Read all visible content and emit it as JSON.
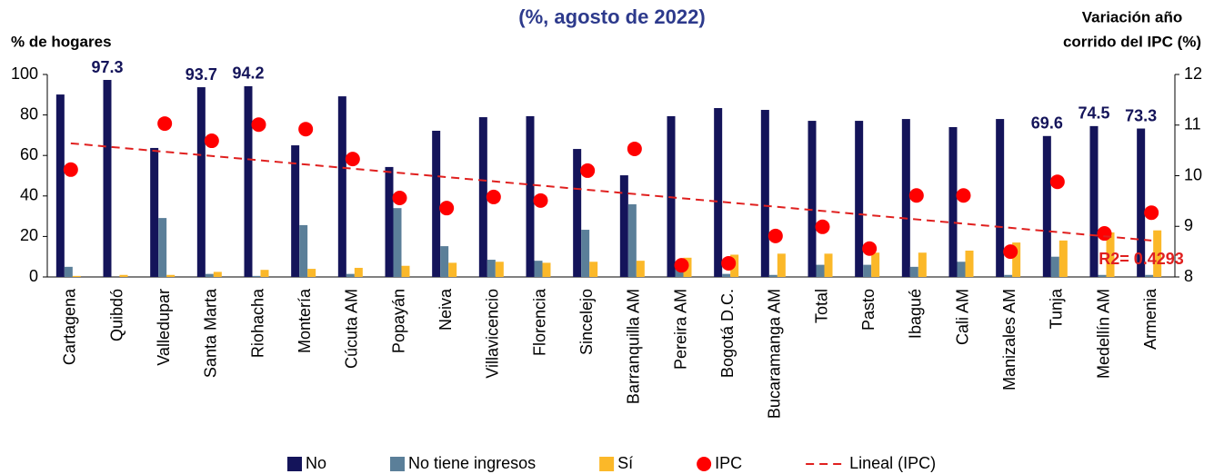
{
  "chart_data": {
    "type": "bar",
    "subtitle": "(%, agosto de 2022)",
    "ylabel": "% de hogares",
    "y2label": [
      "Variación año",
      "corrido del IPC (%)"
    ],
    "categories": [
      "Cartagena",
      "Quibdó",
      "Valledupar",
      "Santa Marta",
      "Riohacha",
      "Montería",
      "Cúcuta AM",
      "Popayán",
      "Neiva",
      "Villavicencio",
      "Florencia",
      "Sincelejo",
      "Barranquilla AM",
      "Pereira AM",
      "Bogotá D.C.",
      "Bucaramanga AM",
      "Total",
      "Pasto",
      "Ibagué",
      "Cali AM",
      "Manizales AM",
      "Tunja",
      "Medellín AM",
      "Armenia"
    ],
    "series": [
      {
        "name": "No",
        "color": "#14145a",
        "values": [
          90.1,
          97.3,
          63.7,
          93.7,
          94.2,
          65,
          89.2,
          54.3,
          72.2,
          78.9,
          79.4,
          63.2,
          50.2,
          79.4,
          83.4,
          82.5,
          77.1,
          77.1,
          78,
          74,
          78,
          69.6,
          74.5,
          73.3
        ],
        "value_labels": [
          null,
          "97.3",
          null,
          "93.7",
          "94.2",
          null,
          null,
          null,
          null,
          null,
          null,
          null,
          null,
          null,
          null,
          null,
          null,
          null,
          null,
          null,
          null,
          "69.6",
          "74.5",
          "73.3"
        ]
      },
      {
        "name": "No tiene ingresos",
        "color": "#5b7f99",
        "values": [
          5,
          0,
          29.1,
          1.5,
          0.5,
          25.6,
          1.5,
          34,
          15.2,
          8.5,
          8,
          23.3,
          35.9,
          5,
          1.5,
          1,
          6,
          6,
          5,
          7.5,
          1,
          10,
          1,
          1
        ]
      },
      {
        "name": "Sí",
        "color": "#fbb829",
        "values": [
          0.5,
          1,
          1,
          2.5,
          3.5,
          4,
          4.5,
          5.5,
          7,
          7.5,
          7,
          7.5,
          8,
          9.5,
          11,
          11.5,
          11.5,
          12,
          12,
          13,
          17,
          18,
          22,
          23
        ]
      },
      {
        "name": "IPC",
        "color": "#ff0000",
        "axis": "y2",
        "type": "scatter",
        "values": [
          10.12,
          null,
          11.03,
          10.69,
          11.01,
          10.92,
          10.33,
          9.56,
          9.36,
          9.58,
          9.51,
          10.1,
          10.53,
          8.23,
          8.27,
          8.81,
          8.99,
          8.56,
          9.61,
          9.61,
          8.5,
          9.88,
          8.86,
          9.27
        ]
      }
    ],
    "trendline": {
      "name": "Lineal (IPC)",
      "color": "#e0201f",
      "start": 10.64,
      "end": 8.72
    },
    "annotation": "R2= 0.4293",
    "ylim": [
      0,
      100
    ],
    "yticks": [
      0,
      20,
      40,
      60,
      80,
      100
    ],
    "y2lim": [
      8,
      12
    ],
    "y2ticks": [
      8,
      9,
      10,
      11,
      12
    ]
  }
}
